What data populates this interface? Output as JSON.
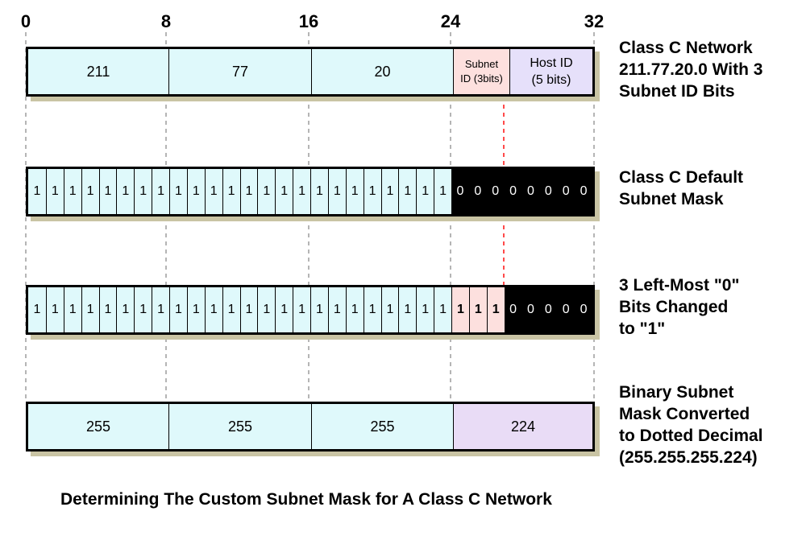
{
  "ticks": [
    "0",
    "8",
    "16",
    "24",
    "32"
  ],
  "row1": {
    "octets": [
      "211",
      "77",
      "20"
    ],
    "subnet_id": "Subnet ID (3bits)",
    "subnet_id_line1": "Subnet",
    "subnet_id_line2": "ID (3bits)",
    "host_id_line1": "Host ID",
    "host_id_line2": "(5 bits)",
    "label": [
      "Class C Network",
      "211.77.20.0 With 3",
      "Subnet ID Bits"
    ]
  },
  "row2": {
    "bits": [
      "1",
      "1",
      "1",
      "1",
      "1",
      "1",
      "1",
      "1",
      "1",
      "1",
      "1",
      "1",
      "1",
      "1",
      "1",
      "1",
      "1",
      "1",
      "1",
      "1",
      "1",
      "1",
      "1",
      "1",
      "0",
      "0",
      "0",
      "0",
      "0",
      "0",
      "0",
      "0"
    ],
    "label": [
      "Class C Default",
      "Subnet Mask"
    ]
  },
  "row3": {
    "bits": [
      "1",
      "1",
      "1",
      "1",
      "1",
      "1",
      "1",
      "1",
      "1",
      "1",
      "1",
      "1",
      "1",
      "1",
      "1",
      "1",
      "1",
      "1",
      "1",
      "1",
      "1",
      "1",
      "1",
      "1",
      "1",
      "1",
      "1",
      "0",
      "0",
      "0",
      "0",
      "0"
    ],
    "label": [
      "3 Left-Most \"0\"",
      "Bits Changed",
      "to \"1\""
    ]
  },
  "row4": {
    "octets": [
      "255",
      "255",
      "255",
      "224"
    ],
    "label": [
      "Binary Subnet",
      "Mask Converted",
      "to Dotted Decimal",
      "(255.255.255.224)"
    ]
  },
  "caption": "Determining The Custom Subnet Mask for A Class C Network",
  "colors": {
    "network": "#dff9fb",
    "subnet": "#fde0de",
    "host": "#e6e0fa",
    "mask_zero": "#000000",
    "last_octet": "#e9dcf6",
    "guide_gray": "#b5b5b5",
    "guide_red": "#ff4a4a"
  }
}
